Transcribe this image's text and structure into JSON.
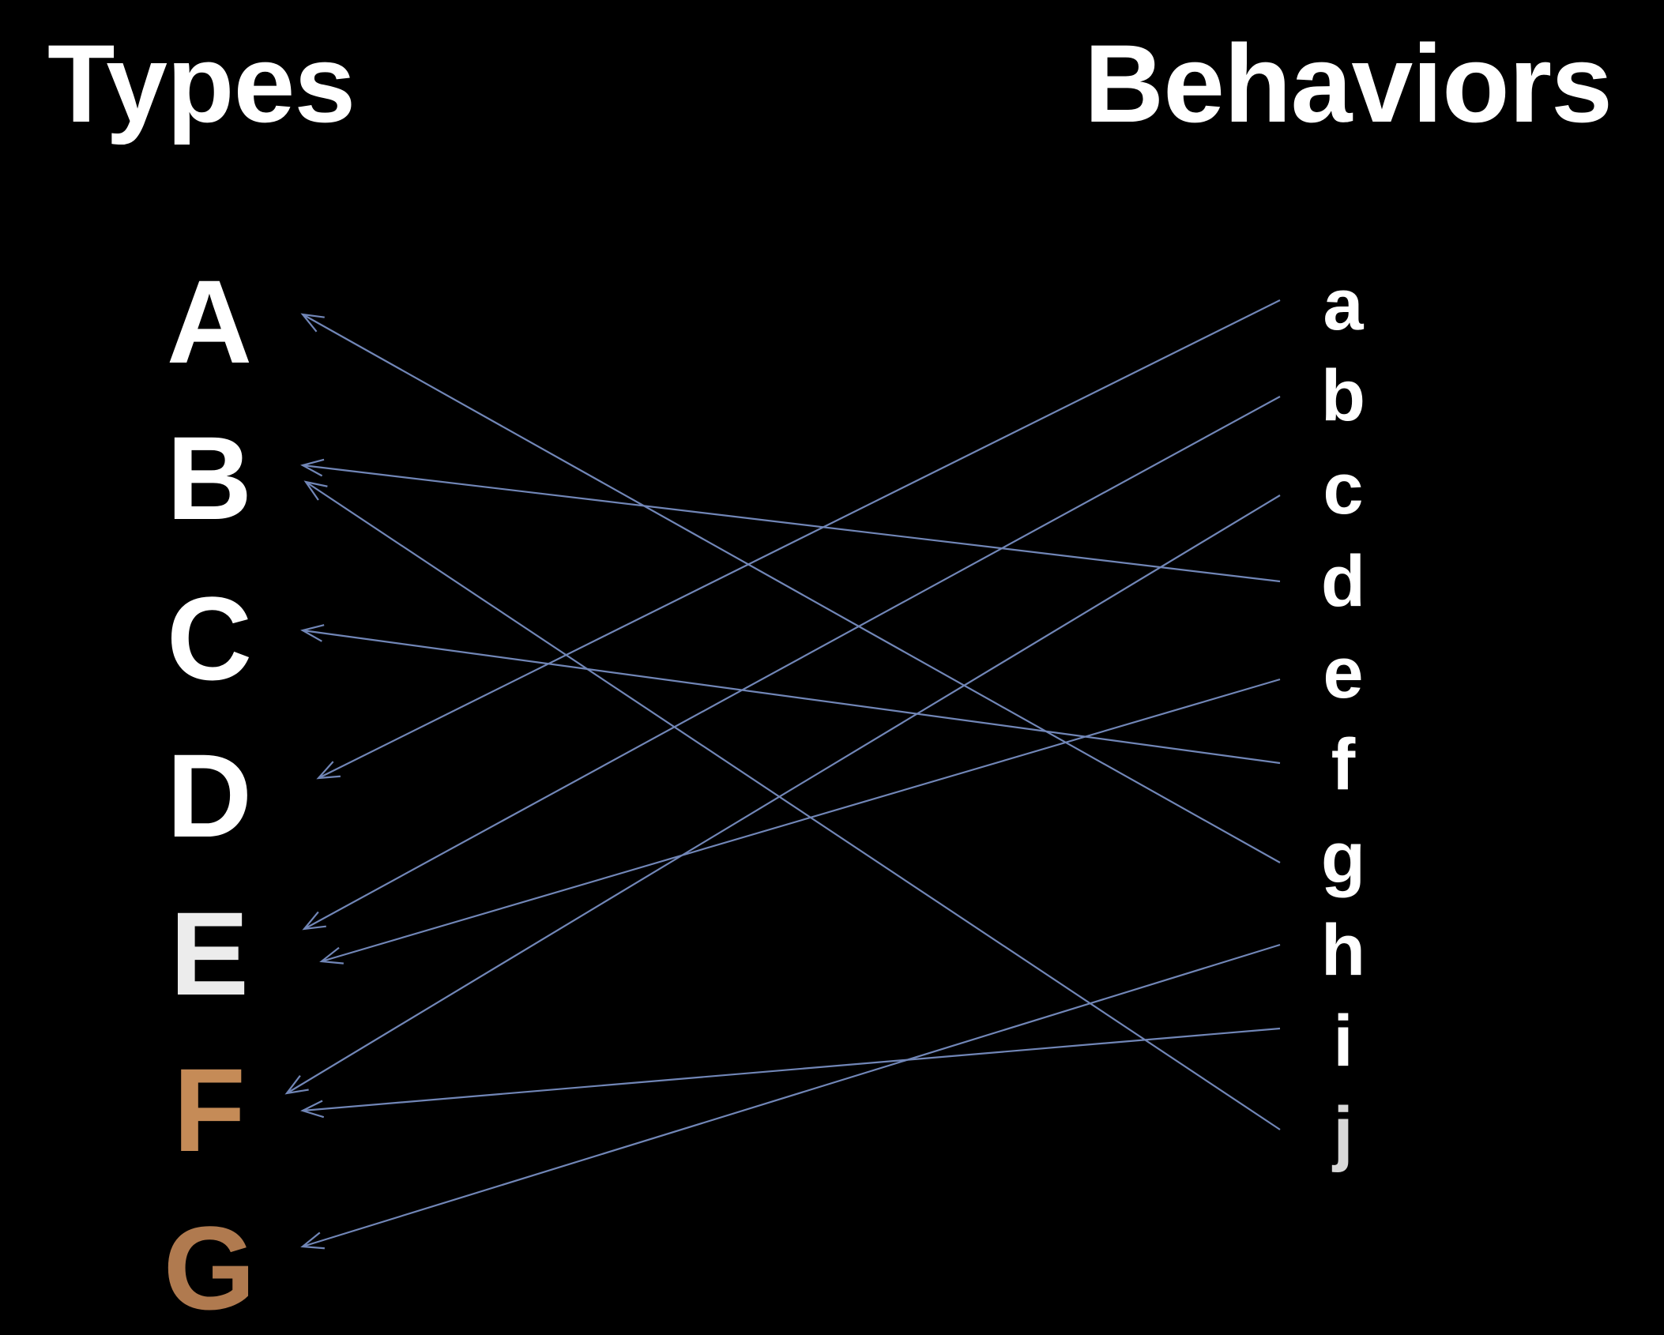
{
  "headings": {
    "types": "Types",
    "behaviors": "Behaviors"
  },
  "types": [
    {
      "label": "A",
      "color": "#ffffff"
    },
    {
      "label": "B",
      "color": "#ffffff"
    },
    {
      "label": "C",
      "color": "#ffffff"
    },
    {
      "label": "D",
      "color": "#ffffff"
    },
    {
      "label": "E",
      "color": "#ececec"
    },
    {
      "label": "F",
      "color": "#c58b57"
    },
    {
      "label": "G",
      "color": "#b07a4f"
    }
  ],
  "behaviors": [
    {
      "label": "a",
      "color": "#ffffff"
    },
    {
      "label": "b",
      "color": "#ffffff"
    },
    {
      "label": "c",
      "color": "#ffffff"
    },
    {
      "label": "d",
      "color": "#ffffff"
    },
    {
      "label": "e",
      "color": "#ffffff"
    },
    {
      "label": "f",
      "color": "#ffffff"
    },
    {
      "label": "g",
      "color": "#ffffff"
    },
    {
      "label": "h",
      "color": "#ffffff"
    },
    {
      "label": "i",
      "color": "#ffffff"
    },
    {
      "label": "j",
      "color": "#d8d8d8"
    }
  ],
  "links": [
    {
      "from": "a",
      "to": "D"
    },
    {
      "from": "b",
      "to": "E"
    },
    {
      "from": "c",
      "to": "F"
    },
    {
      "from": "d",
      "to": "B"
    },
    {
      "from": "e",
      "to": "E"
    },
    {
      "from": "f",
      "to": "C"
    },
    {
      "from": "g",
      "to": "A"
    },
    {
      "from": "h",
      "to": "G"
    },
    {
      "from": "i",
      "to": "F"
    },
    {
      "from": "j",
      "to": "B"
    }
  ],
  "arrow_color": "#7186b7"
}
